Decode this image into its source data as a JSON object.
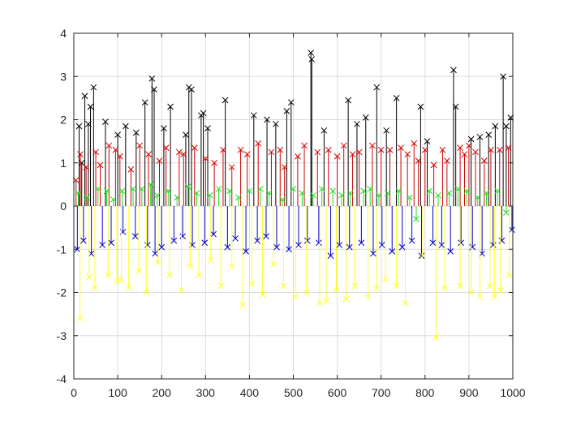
{
  "chart_data": {
    "type": "stem",
    "title": "",
    "xlabel": "",
    "ylabel": "",
    "xlim": [
      0,
      1000
    ],
    "ylim": [
      -4,
      4
    ],
    "grid": true,
    "legend": "none",
    "x_ticks": [
      0,
      100,
      200,
      300,
      400,
      500,
      600,
      700,
      800,
      900,
      1000
    ],
    "y_ticks": [
      -4,
      -3,
      -2,
      -1,
      0,
      1,
      2,
      3,
      4
    ],
    "x_tick_labels": [
      "0",
      "100",
      "200",
      "300",
      "400",
      "500",
      "600",
      "700",
      "800",
      "900",
      "1000"
    ],
    "y_tick_labels": [
      "-4",
      "-3",
      "-2",
      "-1",
      "0",
      "1",
      "2",
      "3",
      "4"
    ],
    "marker": "x",
    "series": [
      {
        "name": "black",
        "color": "#000000",
        "x": [
          12,
          18,
          25,
          33,
          38,
          45,
          72,
          100,
          118,
          142,
          162,
          178,
          183,
          205,
          220,
          255,
          262,
          268,
          290,
          295,
          305,
          345,
          410,
          440,
          460,
          485,
          495,
          540,
          542,
          570,
          625,
          645,
          665,
          690,
          712,
          735,
          790,
          805,
          865,
          870,
          905,
          925,
          945,
          960,
          978,
          985,
          995
        ],
        "values": [
          1.85,
          1.0,
          2.55,
          1.9,
          2.3,
          2.75,
          1.95,
          1.65,
          1.85,
          1.7,
          2.4,
          2.95,
          2.7,
          1.8,
          2.3,
          1.65,
          2.75,
          2.7,
          2.1,
          2.15,
          1.8,
          2.45,
          2.1,
          2.0,
          1.9,
          2.2,
          2.4,
          3.55,
          3.4,
          1.75,
          2.45,
          1.9,
          2.05,
          2.75,
          1.75,
          2.5,
          2.3,
          1.5,
          3.15,
          2.3,
          1.55,
          1.6,
          1.65,
          1.85,
          3.0,
          1.85,
          2.05
        ]
      },
      {
        "name": "red",
        "color": "#d00000",
        "x": [
          5,
          15,
          28,
          50,
          60,
          80,
          95,
          105,
          130,
          150,
          170,
          195,
          210,
          240,
          250,
          275,
          300,
          320,
          340,
          360,
          380,
          395,
          420,
          450,
          470,
          480,
          510,
          525,
          555,
          580,
          600,
          615,
          635,
          650,
          680,
          700,
          720,
          745,
          760,
          775,
          785,
          800,
          820,
          840,
          850,
          880,
          890,
          900,
          915,
          935,
          950,
          970,
          990
        ],
        "values": [
          0.6,
          1.2,
          0.9,
          1.25,
          0.95,
          1.4,
          1.3,
          1.15,
          0.85,
          1.4,
          1.2,
          1.05,
          1.35,
          1.25,
          1.2,
          1.35,
          1.1,
          1.0,
          1.3,
          0.9,
          1.3,
          1.2,
          1.45,
          1.25,
          1.3,
          0.9,
          1.15,
          1.4,
          1.25,
          1.3,
          1.15,
          1.4,
          1.2,
          1.25,
          1.4,
          1.3,
          1.3,
          1.35,
          1.2,
          1.45,
          1.05,
          1.3,
          0.95,
          1.3,
          1.05,
          1.35,
          1.2,
          1.4,
          1.25,
          1.05,
          1.3,
          1.3,
          1.35
        ]
      },
      {
        "name": "green",
        "color": "#22dd22",
        "x": [
          10,
          30,
          55,
          75,
          90,
          110,
          135,
          155,
          175,
          190,
          215,
          235,
          260,
          280,
          310,
          330,
          355,
          375,
          400,
          425,
          445,
          475,
          500,
          520,
          545,
          565,
          590,
          610,
          630,
          660,
          675,
          695,
          715,
          740,
          765,
          780,
          810,
          830,
          855,
          875,
          895,
          920,
          940,
          965,
          985
        ],
        "values": [
          0.3,
          0.2,
          0.4,
          0.35,
          0.15,
          0.35,
          0.4,
          0.4,
          0.5,
          0.25,
          0.35,
          0.2,
          0.45,
          0.3,
          0.25,
          0.4,
          0.35,
          0.2,
          0.35,
          0.4,
          0.3,
          0.15,
          0.4,
          0.3,
          0.25,
          0.4,
          0.35,
          0.25,
          0.3,
          0.35,
          0.4,
          0.25,
          0.3,
          0.35,
          0.2,
          -0.3,
          0.35,
          0.25,
          0.3,
          0.4,
          0.35,
          0.2,
          0.3,
          0.35,
          -0.15
        ]
      },
      {
        "name": "blue",
        "color": "#0000cc",
        "x": [
          8,
          22,
          40,
          65,
          85,
          112,
          140,
          168,
          185,
          200,
          228,
          248,
          270,
          298,
          318,
          350,
          368,
          392,
          418,
          438,
          462,
          490,
          512,
          532,
          558,
          585,
          605,
          628,
          655,
          682,
          702,
          725,
          748,
          770,
          792,
          818,
          838,
          858,
          882,
          908,
          930,
          955,
          975,
          998
        ],
        "values": [
          -1.0,
          -0.8,
          -1.1,
          -0.9,
          -0.85,
          -0.6,
          -0.7,
          -0.9,
          -1.1,
          -0.95,
          -0.8,
          -0.7,
          -0.9,
          -0.85,
          -0.65,
          -0.95,
          -0.75,
          -1.05,
          -0.8,
          -0.7,
          -0.95,
          -1.0,
          -0.9,
          -0.8,
          -0.85,
          -1.15,
          -0.9,
          -0.95,
          -0.85,
          -1.1,
          -0.9,
          -1.05,
          -0.95,
          -0.8,
          -1.15,
          -0.85,
          -0.9,
          -1.05,
          -0.85,
          -0.95,
          -1.1,
          -0.9,
          -0.8,
          -0.55
        ]
      },
      {
        "name": "yellow",
        "color": "#ffff22",
        "x": [
          14,
          35,
          48,
          78,
          98,
          108,
          125,
          148,
          165,
          192,
          218,
          245,
          265,
          285,
          312,
          335,
          360,
          385,
          405,
          430,
          455,
          478,
          505,
          530,
          560,
          575,
          598,
          620,
          640,
          670,
          690,
          710,
          735,
          755,
          795,
          825,
          845,
          880,
          905,
          925,
          948,
          958,
          972,
          992
        ],
        "values": [
          -2.6,
          -1.65,
          -1.9,
          -1.6,
          -1.75,
          -1.7,
          -1.9,
          -1.5,
          -2.0,
          -1.3,
          -1.6,
          -1.95,
          -1.4,
          -1.6,
          -1.25,
          -1.85,
          -1.4,
          -2.3,
          -1.8,
          -2.05,
          -1.35,
          -1.85,
          -2.1,
          -2.0,
          -2.25,
          -2.2,
          -1.95,
          -2.15,
          -1.85,
          -2.1,
          -1.9,
          -1.7,
          -1.85,
          -2.25,
          -1.15,
          -3.05,
          -1.9,
          -1.85,
          -2.0,
          -2.1,
          -1.85,
          -2.1,
          -1.95,
          -1.6
        ]
      }
    ]
  }
}
